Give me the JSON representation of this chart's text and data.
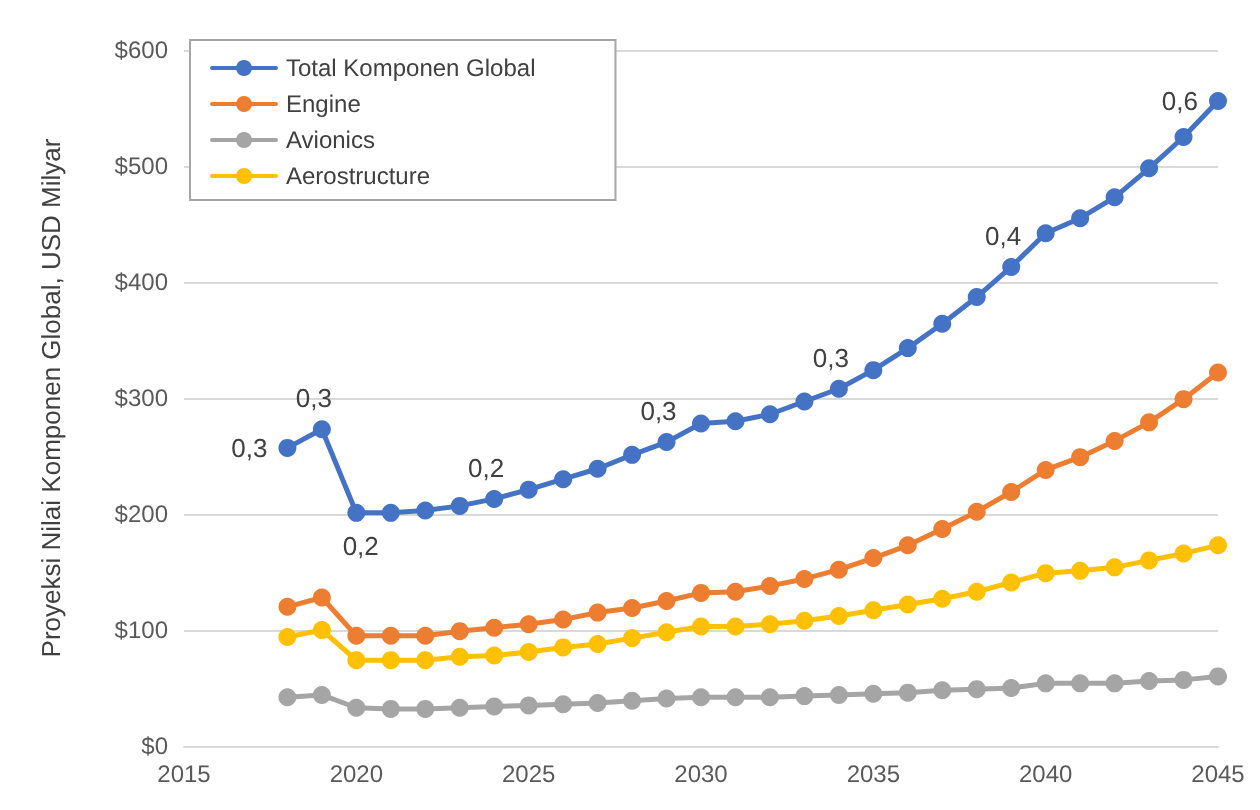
{
  "chart_data": {
    "type": "line",
    "ylabel": "Proyeksi Nilai Komponen Global, USD Milyar",
    "x": [
      2018,
      2019,
      2020,
      2021,
      2022,
      2023,
      2024,
      2025,
      2026,
      2027,
      2028,
      2029,
      2030,
      2031,
      2032,
      2033,
      2034,
      2035,
      2036,
      2037,
      2038,
      2039,
      2040,
      2041,
      2042,
      2043,
      2044,
      2045
    ],
    "series": [
      {
        "name": "Total Komponen Global",
        "color": "#4472c4",
        "values": [
          257,
          273,
          201,
          201,
          203,
          207,
          213,
          221,
          230,
          239,
          251,
          262,
          278,
          280,
          286,
          297,
          308,
          324,
          343,
          364,
          387,
          413,
          442,
          455,
          473,
          498,
          525,
          556
        ]
      },
      {
        "name": "Engine",
        "color": "#ed7d31",
        "values": [
          120,
          128,
          95,
          95,
          95,
          99,
          102,
          105,
          109,
          115,
          119,
          125,
          132,
          133,
          138,
          144,
          152,
          162,
          173,
          187,
          202,
          219,
          238,
          249,
          263,
          279,
          299,
          322
        ]
      },
      {
        "name": "Avionics",
        "color": "#a5a5a5",
        "values": [
          42,
          44,
          33,
          32,
          32,
          33,
          34,
          35,
          36,
          37,
          39,
          41,
          42,
          42,
          42,
          43,
          44,
          45,
          46,
          48,
          49,
          50,
          54,
          54,
          54,
          56,
          57,
          60
        ]
      },
      {
        "name": "Aerostructure",
        "color": "#ffc000",
        "values": [
          94,
          100,
          74,
          74,
          74,
          77,
          78,
          81,
          85,
          88,
          93,
          98,
          103,
          103,
          105,
          108,
          112,
          117,
          122,
          127,
          133,
          141,
          149,
          151,
          154,
          160,
          166,
          173
        ]
      }
    ],
    "xlim": [
      2015,
      2045
    ],
    "xticks": [
      2015,
      2020,
      2025,
      2030,
      2035,
      2040,
      2045
    ],
    "ylim": [
      0,
      600
    ],
    "yticks": [
      {
        "value": 0,
        "label": "$0"
      },
      {
        "value": 100,
        "label": "$100"
      },
      {
        "value": 200,
        "label": "$200"
      },
      {
        "value": 300,
        "label": "$300"
      },
      {
        "value": 400,
        "label": "$400"
      },
      {
        "value": 500,
        "label": "$500"
      },
      {
        "value": 600,
        "label": "$600"
      }
    ],
    "annotations": [
      {
        "text": "0,3",
        "x": 2018,
        "y": 257
      },
      {
        "text": "0,3",
        "x": 2019,
        "y": 273
      },
      {
        "text": "0,2",
        "x": 2021,
        "y": 201
      },
      {
        "text": "0,2",
        "x": 2024,
        "y": 213
      },
      {
        "text": "0,3",
        "x": 2029,
        "y": 262
      },
      {
        "text": "0,3",
        "x": 2034,
        "y": 308
      },
      {
        "text": "0,4",
        "x": 2039,
        "y": 413
      },
      {
        "text": "0,6",
        "x": 2045,
        "y": 556
      }
    ],
    "grid": "y",
    "legend": "top left",
    "marker": "circle",
    "line_style": "solid"
  }
}
